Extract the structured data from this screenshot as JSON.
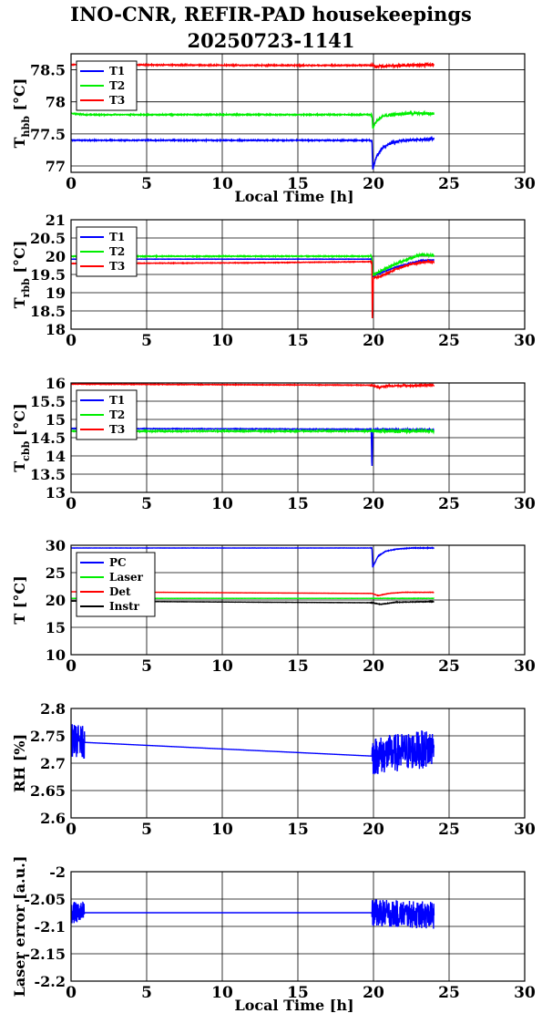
{
  "title_line1": "INO-CNR, REFIR-PAD housekeepings",
  "title_line2": "20250723-1141",
  "colors": {
    "blue": "#0000ff",
    "green": "#00ee00",
    "red": "#ff0000",
    "black": "#000000"
  },
  "chart_data": [
    {
      "type": "line",
      "ylabel": "T_hbb [°C]",
      "ylabel_main": "T",
      "ylabel_sub": "hbb",
      "ylabel_unit": "[°C]",
      "xlabel": "Local Time [h]",
      "xlim": [
        0,
        30
      ],
      "ylim": [
        76.9,
        78.75
      ],
      "xticks": [
        "0",
        "5",
        "10",
        "15",
        "20",
        "25",
        "30"
      ],
      "yticks": [
        {
          "v": 77,
          "t": "77"
        },
        {
          "v": 77.5,
          "t": "77.5"
        },
        {
          "v": 78,
          "t": "78"
        },
        {
          "v": 78.5,
          "t": "78.5"
        }
      ],
      "grid": true,
      "legend_position": "top-left",
      "series": [
        {
          "name": "T1",
          "color": "#0000ff",
          "x": [
            0,
            0.9,
            12,
            19.9,
            19.95,
            20.2,
            20.6,
            21.2,
            22,
            24
          ],
          "y": [
            77.4,
            77.4,
            77.4,
            77.4,
            76.95,
            77.15,
            77.28,
            77.36,
            77.4,
            77.42
          ],
          "noise": 0.02
        },
        {
          "name": "T2",
          "color": "#00ee00",
          "x": [
            0,
            0.9,
            12,
            19.9,
            19.95,
            20.2,
            20.6,
            21.2,
            22,
            24
          ],
          "y": [
            77.82,
            77.8,
            77.8,
            77.8,
            77.6,
            77.7,
            77.77,
            77.8,
            77.82,
            77.82
          ],
          "noise": 0.02
        },
        {
          "name": "T3",
          "color": "#ff0000",
          "x": [
            0,
            0.9,
            12,
            19.9,
            20.2,
            21,
            22,
            24
          ],
          "y": [
            78.58,
            78.58,
            78.57,
            78.57,
            78.55,
            78.56,
            78.57,
            78.58
          ],
          "noise": 0.02
        }
      ]
    },
    {
      "type": "line",
      "ylabel": "T_rbb [°C]",
      "ylabel_main": "T",
      "ylabel_sub": "rbb",
      "ylabel_unit": "[°C]",
      "xlim": [
        0,
        30
      ],
      "ylim": [
        18,
        21
      ],
      "xticks": [
        "0",
        "5",
        "10",
        "15",
        "20",
        "25",
        "30"
      ],
      "yticks": [
        {
          "v": 18,
          "t": "18"
        },
        {
          "v": 18.5,
          "t": "18.5"
        },
        {
          "v": 19,
          "t": "19"
        },
        {
          "v": 19.5,
          "t": "19.5"
        },
        {
          "v": 20,
          "t": "20"
        },
        {
          "v": 20.5,
          "t": "20.5"
        },
        {
          "v": 21,
          "t": "21"
        }
      ],
      "grid": true,
      "legend_position": "top-left",
      "series": [
        {
          "name": "T1",
          "color": "#0000ff",
          "x": [
            0,
            12,
            19.9,
            19.95,
            20.5,
            21.5,
            22.5,
            23.2,
            24
          ],
          "y": [
            19.92,
            19.92,
            19.92,
            19.45,
            19.55,
            19.7,
            19.82,
            19.88,
            19.9
          ],
          "noise": 0.01
        },
        {
          "name": "T2",
          "color": "#00ee00",
          "x": [
            0,
            12,
            19.9,
            19.95,
            20.5,
            21.5,
            22.5,
            23.2,
            24
          ],
          "y": [
            20.0,
            20.0,
            20.0,
            19.48,
            19.6,
            19.8,
            19.95,
            20.05,
            20.0
          ],
          "noise": 0.03
        },
        {
          "name": "T3",
          "color": "#ff0000",
          "x": [
            0,
            12,
            19.9,
            19.92,
            20.0,
            20.5,
            21.5,
            22.5,
            23.5,
            24
          ],
          "y": [
            19.8,
            19.82,
            19.85,
            18.3,
            19.4,
            19.45,
            19.65,
            19.78,
            19.85,
            19.85
          ],
          "noise": 0.02
        }
      ]
    },
    {
      "type": "line",
      "ylabel": "T_cbb [°C]",
      "ylabel_main": "T",
      "ylabel_sub": "cbb",
      "ylabel_unit": "[°C]",
      "xlim": [
        0,
        30
      ],
      "ylim": [
        13,
        16
      ],
      "xticks": [
        "0",
        "5",
        "10",
        "15",
        "20",
        "25",
        "30"
      ],
      "yticks": [
        {
          "v": 13,
          "t": "13"
        },
        {
          "v": 13.5,
          "t": "13.5"
        },
        {
          "v": 14,
          "t": "14"
        },
        {
          "v": 14.5,
          "t": "14.5"
        },
        {
          "v": 15,
          "t": "15"
        },
        {
          "v": 15.5,
          "t": "15.5"
        },
        {
          "v": 16,
          "t": "16"
        }
      ],
      "grid": true,
      "legend_position": "top-left",
      "series": [
        {
          "name": "T1",
          "color": "#0000ff",
          "x": [
            0,
            12,
            19.85,
            19.9,
            19.95,
            24
          ],
          "y": [
            14.75,
            14.74,
            14.73,
            13.6,
            14.72,
            14.72
          ],
          "noise": 0.02
        },
        {
          "name": "T2",
          "color": "#00ee00",
          "x": [
            0,
            12,
            19.9,
            24
          ],
          "y": [
            14.68,
            14.68,
            14.68,
            14.68
          ],
          "noise": 0.04
        },
        {
          "name": "T3",
          "color": "#ff0000",
          "x": [
            0,
            12,
            19.9,
            20.3,
            21,
            24
          ],
          "y": [
            15.97,
            15.95,
            15.94,
            15.88,
            15.92,
            15.94
          ],
          "noise": 0.02
        }
      ]
    },
    {
      "type": "line",
      "ylabel": "T [°C]",
      "ylabel_main": "T",
      "ylabel_sub": "",
      "ylabel_unit": "[°C]",
      "xlim": [
        0,
        30
      ],
      "ylim": [
        10,
        30
      ],
      "xticks": [
        "0",
        "5",
        "10",
        "15",
        "20",
        "25",
        "30"
      ],
      "yticks": [
        {
          "v": 10,
          "t": "10"
        },
        {
          "v": 15,
          "t": "15"
        },
        {
          "v": 20,
          "t": "20"
        },
        {
          "v": 25,
          "t": "25"
        },
        {
          "v": 30,
          "t": "30"
        }
      ],
      "grid": true,
      "legend_position": "top-left",
      "series": [
        {
          "name": "PC",
          "color": "#0000ff",
          "x": [
            0,
            12,
            19.9,
            19.95,
            20.3,
            20.8,
            21.5,
            22.5,
            24
          ],
          "y": [
            29.5,
            29.5,
            29.5,
            26,
            28,
            28.9,
            29.3,
            29.5,
            29.5
          ],
          "noise": 0.05
        },
        {
          "name": "Laser",
          "color": "#00ee00",
          "x": [
            0,
            12,
            19.9,
            24
          ],
          "y": [
            20.3,
            20.3,
            20.3,
            20.3
          ],
          "noise": 0.03
        },
        {
          "name": "Det",
          "color": "#ff0000",
          "x": [
            0,
            12,
            19.9,
            20.3,
            21,
            22,
            24
          ],
          "y": [
            21.5,
            21.3,
            21.2,
            20.8,
            21.2,
            21.4,
            21.4
          ],
          "noise": 0.03
        },
        {
          "name": "Instr",
          "color": "#000000",
          "x": [
            0,
            12,
            19.9,
            20.5,
            21.5,
            24
          ],
          "y": [
            19.8,
            19.6,
            19.5,
            19.2,
            19.6,
            19.7
          ],
          "noise": 0.05
        }
      ]
    },
    {
      "type": "line",
      "ylabel": "RH [%]",
      "ylabel_main": "RH [%]",
      "ylabel_sub": "",
      "ylabel_unit": "",
      "xlim": [
        0,
        30
      ],
      "ylim": [
        2.6,
        2.8
      ],
      "xticks": [
        "0",
        "5",
        "10",
        "15",
        "20",
        "25",
        "30"
      ],
      "yticks": [
        {
          "v": 2.6,
          "t": "2.6"
        },
        {
          "v": 2.65,
          "t": "2.65"
        },
        {
          "v": 2.7,
          "t": "2.7"
        },
        {
          "v": 2.75,
          "t": "2.75"
        },
        {
          "v": 2.8,
          "t": "2.8"
        }
      ],
      "grid": true,
      "legend_position": "none",
      "series": [
        {
          "name": "",
          "color": "#0000ff",
          "x": [
            0,
            0.9,
            19.9,
            24
          ],
          "y": [
            2.742,
            2.738,
            2.713,
            2.728
          ],
          "noisy_ranges": [
            [
              0,
              0.9,
              0.03
            ],
            [
              19.9,
              24,
              0.035
            ]
          ]
        }
      ]
    },
    {
      "type": "line",
      "ylabel": "Laser error [a.u.]",
      "ylabel_main": "Laser error [a.u.]",
      "ylabel_sub": "",
      "ylabel_unit": "",
      "xlabel": "Local Time [h]",
      "xlim": [
        0,
        30
      ],
      "ylim": [
        -2.2,
        -2.0
      ],
      "xticks": [
        "0",
        "5",
        "10",
        "15",
        "20",
        "25",
        "30"
      ],
      "yticks": [
        {
          "v": -2.2,
          "t": "-2.2"
        },
        {
          "v": -2.15,
          "t": "-2.15"
        },
        {
          "v": -2.1,
          "t": "-2.1"
        },
        {
          "v": -2.05,
          "t": "-2.05"
        },
        {
          "v": -2.0,
          "t": "-2"
        }
      ],
      "grid": true,
      "legend_position": "none",
      "series": [
        {
          "name": "",
          "color": "#0000ff",
          "x": [
            0,
            0.9,
            19.9,
            24
          ],
          "y": [
            -2.075,
            -2.075,
            -2.075,
            -2.08
          ],
          "noisy_ranges": [
            [
              0,
              0.9,
              0.02
            ],
            [
              19.9,
              24,
              0.025
            ]
          ]
        }
      ]
    }
  ]
}
